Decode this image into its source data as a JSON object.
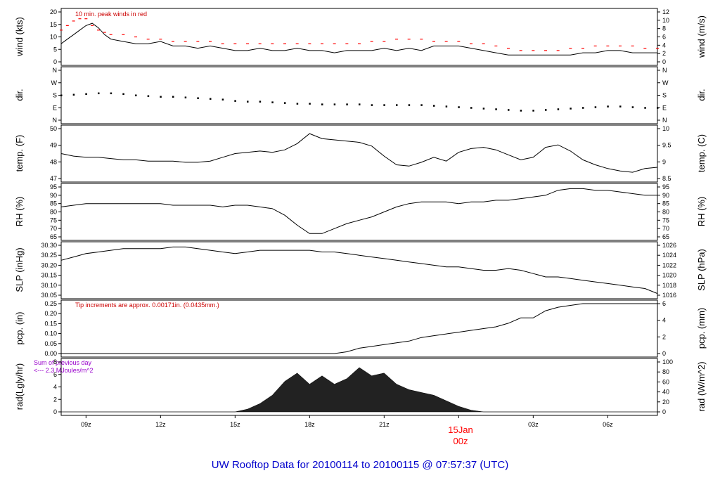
{
  "footer_title": "UW Rooftop Data for 20100114  to  20100115 @ 07:57:37  (UTC)",
  "date_marker": {
    "day": "15Jan",
    "hour": "00z"
  },
  "x_ticks": [
    "09z",
    "12z",
    "15z",
    "18z",
    "21z",
    "00z",
    "03z",
    "06z"
  ],
  "colors": {
    "line": "#000000",
    "peak": "#ff0000",
    "precip": "#ff0000",
    "radiation_note": "#9900cc",
    "footer": "#0000cc"
  },
  "chart_data": [
    {
      "type": "line",
      "name": "wind",
      "ylabel_left": "wind (kts)",
      "ylabel_right": "wind (m/s)",
      "annotation": "10 min. peak winds in red",
      "left_ticks": [
        "0",
        "5",
        "10",
        "15",
        "20"
      ],
      "right_ticks": [
        "0",
        "2",
        "4",
        "6",
        "8",
        "10",
        "12"
      ],
      "x_hours": [
        0,
        0.25,
        0.5,
        0.75,
        1,
        1.25,
        1.5,
        1.75,
        2,
        2.5,
        3,
        3.5,
        4,
        4.5,
        5,
        5.5,
        6,
        6.5,
        7,
        7.5,
        8,
        8.5,
        9,
        9.5,
        10,
        10.5,
        11,
        11.5,
        12,
        12.5,
        13,
        13.5,
        14,
        14.5,
        15,
        15.5,
        16,
        16.5,
        17,
        17.5,
        18,
        18.5,
        19,
        19.5,
        20,
        20.5,
        21,
        21.5,
        22,
        22.5,
        23,
        23.5,
        24
      ],
      "values": [
        8,
        10,
        12,
        14,
        16,
        17,
        15,
        12,
        10,
        9,
        8,
        8,
        9,
        7,
        7,
        6,
        7,
        6,
        5,
        5,
        6,
        5,
        5,
        6,
        5,
        5,
        4,
        5,
        5,
        5,
        6,
        5,
        6,
        5,
        7,
        7,
        7,
        6,
        5,
        4,
        3,
        3,
        3,
        3,
        3,
        3,
        4,
        4,
        5,
        5,
        4,
        4,
        4
      ],
      "peaks": [
        14,
        16,
        18,
        19,
        19,
        16,
        14,
        13,
        12,
        12,
        11,
        10,
        10,
        9,
        9,
        9,
        9,
        8,
        8,
        8,
        8,
        8,
        8,
        8,
        8,
        8,
        8,
        8,
        8,
        9,
        9,
        10,
        10,
        10,
        9,
        9,
        9,
        8,
        8,
        7,
        6,
        5,
        5,
        5,
        5,
        6,
        6,
        7,
        7,
        7,
        7,
        6,
        6
      ],
      "ylim": [
        0,
        22
      ]
    },
    {
      "type": "scatter",
      "name": "direction",
      "ylabel_left": "dir.",
      "ylabel_right": "dir.",
      "left_ticks": [
        "N",
        "E",
        "S",
        "W",
        "N"
      ],
      "right_ticks": [
        "N",
        "E",
        "S",
        "W",
        "N"
      ],
      "x_hours": [
        0,
        0.5,
        1,
        1.5,
        2,
        2.5,
        3,
        3.5,
        4,
        4.5,
        5,
        5.5,
        6,
        6.5,
        7,
        7.5,
        8,
        8.5,
        9,
        9.5,
        10,
        10.5,
        11,
        11.5,
        12,
        12.5,
        13,
        13.5,
        14,
        14.5,
        15,
        15.5,
        16,
        16.5,
        17,
        17.5,
        18,
        18.5,
        19,
        19.5,
        20,
        20.5,
        21,
        21.5,
        22,
        22.5,
        23,
        23.5,
        24
      ],
      "values": [
        180,
        185,
        190,
        195,
        195,
        190,
        180,
        175,
        170,
        170,
        165,
        160,
        155,
        150,
        140,
        135,
        135,
        130,
        125,
        120,
        120,
        115,
        115,
        115,
        115,
        110,
        110,
        110,
        110,
        110,
        105,
        100,
        95,
        90,
        85,
        80,
        75,
        70,
        70,
        75,
        80,
        85,
        90,
        95,
        100,
        100,
        95,
        90,
        90
      ],
      "ylim": [
        0,
        360
      ]
    },
    {
      "type": "line",
      "name": "temperature",
      "ylabel_left": "temp. (F)",
      "ylabel_right": "temp. (C)",
      "left_ticks": [
        "47",
        "48",
        "49",
        "50"
      ],
      "right_ticks": [
        "8.5",
        "9",
        "9.5",
        "10"
      ],
      "x_hours": [
        0,
        0.5,
        1,
        1.5,
        2,
        2.5,
        3,
        3.5,
        4,
        4.5,
        5,
        5.5,
        6,
        6.5,
        7,
        7.5,
        8,
        8.5,
        9,
        9.5,
        10,
        10.5,
        11,
        11.5,
        12,
        12.5,
        13,
        13.5,
        14,
        14.5,
        15,
        15.5,
        16,
        16.5,
        17,
        17.5,
        18,
        18.5,
        19,
        19.5,
        20,
        20.5,
        21,
        21.5,
        22,
        22.5,
        23,
        23.5,
        24
      ],
      "values": [
        48.5,
        48.3,
        48.2,
        48.2,
        48.1,
        48.0,
        48.0,
        47.9,
        47.9,
        47.9,
        47.8,
        47.8,
        47.9,
        48.2,
        48.5,
        48.6,
        48.7,
        48.6,
        48.8,
        49.3,
        50.1,
        49.7,
        49.6,
        49.5,
        49.4,
        49.1,
        48.3,
        47.6,
        47.5,
        47.8,
        48.2,
        47.9,
        48.6,
        48.9,
        49.0,
        48.8,
        48.4,
        48.0,
        48.2,
        49.0,
        49.2,
        48.7,
        48.0,
        47.6,
        47.3,
        47.1,
        47.0,
        47.3,
        47.4
      ],
      "ylim": [
        46.5,
        50.5
      ]
    },
    {
      "type": "line",
      "name": "relative_humidity",
      "ylabel_left": "RH (%)",
      "ylabel_right": "RH (%)",
      "left_ticks": [
        "65",
        "70",
        "75",
        "80",
        "85",
        "90",
        "95"
      ],
      "right_ticks": [
        "65",
        "70",
        "75",
        "80",
        "85",
        "90",
        "95"
      ],
      "x_hours": [
        0,
        0.5,
        1,
        1.5,
        2,
        2.5,
        3,
        3.5,
        4,
        4.5,
        5,
        5.5,
        6,
        6.5,
        7,
        7.5,
        8,
        8.5,
        9,
        9.5,
        10,
        10.5,
        11,
        11.5,
        12,
        12.5,
        13,
        13.5,
        14,
        14.5,
        15,
        15.5,
        16,
        16.5,
        17,
        17.5,
        18,
        18.5,
        19,
        19.5,
        20,
        20.5,
        21,
        21.5,
        22,
        22.5,
        23,
        23.5,
        24
      ],
      "values": [
        83,
        84,
        85,
        85,
        85,
        85,
        85,
        85,
        85,
        84,
        84,
        84,
        84,
        83,
        84,
        84,
        83,
        82,
        78,
        72,
        67,
        67,
        70,
        73,
        75,
        77,
        80,
        83,
        85,
        86,
        86,
        86,
        85,
        86,
        86,
        87,
        87,
        88,
        89,
        90,
        93,
        94,
        94,
        93,
        93,
        92,
        91,
        90,
        90
      ],
      "ylim": [
        65,
        95
      ]
    },
    {
      "type": "line",
      "name": "sea_level_pressure",
      "ylabel_left": "SLP (inHg)",
      "ylabel_right": "SLP (hPa)",
      "left_ticks": [
        "30.05",
        "30.10",
        "30.15",
        "30.20",
        "30.25",
        "30.30"
      ],
      "right_ticks": [
        "1016",
        "1018",
        "1020",
        "1022",
        "1024",
        "1026"
      ],
      "x_hours": [
        0,
        0.5,
        1,
        1.5,
        2,
        2.5,
        3,
        3.5,
        4,
        4.5,
        5,
        5.5,
        6,
        6.5,
        7,
        7.5,
        8,
        8.5,
        9,
        9.5,
        10,
        10.5,
        11,
        11.5,
        12,
        12.5,
        13,
        13.5,
        14,
        14.5,
        15,
        15.5,
        16,
        16.5,
        17,
        17.5,
        18,
        18.5,
        19,
        19.5,
        20,
        20.5,
        21,
        21.5,
        22,
        22.5,
        23,
        23.5,
        24
      ],
      "values": [
        30.22,
        30.24,
        30.26,
        30.27,
        30.28,
        30.29,
        30.29,
        30.29,
        30.29,
        30.3,
        30.3,
        30.29,
        30.28,
        30.27,
        30.26,
        30.27,
        30.28,
        30.28,
        30.28,
        30.28,
        30.28,
        30.27,
        30.27,
        30.26,
        30.25,
        30.24,
        30.23,
        30.22,
        30.21,
        30.2,
        30.19,
        30.18,
        30.18,
        30.17,
        30.16,
        30.16,
        30.17,
        30.16,
        30.14,
        30.12,
        30.12,
        30.11,
        30.1,
        30.09,
        30.08,
        30.07,
        30.06,
        30.05,
        30.02
      ],
      "ylim": [
        30.01,
        30.31
      ]
    },
    {
      "type": "area",
      "name": "precipitation",
      "ylabel_left": "pcp. (in)",
      "ylabel_right": "pcp. (mm)",
      "annotation": "Tip increments are approx. 0.00171in. (0.0435mm.)",
      "left_ticks": [
        "0.00",
        "0.05",
        "0.10",
        "0.15",
        "0.20",
        "0.25"
      ],
      "right_ticks": [
        "0",
        "2",
        "4",
        "6"
      ],
      "x_hours": [
        0,
        11,
        11.5,
        12,
        12.5,
        13,
        13.5,
        14,
        14.5,
        15,
        15.5,
        16,
        16.5,
        17,
        17.5,
        18,
        18.5,
        19,
        19.5,
        20,
        20.5,
        21,
        24
      ],
      "values": [
        0,
        0,
        0.01,
        0.03,
        0.04,
        0.05,
        0.06,
        0.07,
        0.09,
        0.1,
        0.11,
        0.12,
        0.13,
        0.14,
        0.15,
        0.17,
        0.2,
        0.2,
        0.24,
        0.26,
        0.27,
        0.28,
        0.28
      ],
      "ylim": [
        0,
        0.28
      ]
    },
    {
      "type": "area",
      "name": "radiation",
      "ylabel_left": "rad(Lgly/hr)",
      "ylabel_right": "rad (W/m^2)",
      "annotation_line1": "Sum of previous day",
      "annotation_line2": "<--- 2.3 MJoules/m^2",
      "left_ticks": [
        "0",
        "2",
        "4",
        "6",
        "8"
      ],
      "right_ticks": [
        "0",
        "20",
        "40",
        "60",
        "80",
        "100"
      ],
      "x_hours": [
        0,
        7,
        7.5,
        8,
        8.5,
        9,
        9.5,
        10,
        10.5,
        11,
        11.5,
        12,
        12.5,
        13,
        13.5,
        14,
        14.5,
        15,
        15.5,
        16,
        16.5,
        17,
        24
      ],
      "values": [
        0,
        0,
        0.5,
        1.5,
        3,
        5.5,
        7,
        5,
        6.5,
        5,
        6,
        8,
        6.5,
        7,
        5,
        4,
        3.5,
        3,
        2,
        1,
        0.3,
        0,
        0
      ],
      "ylim": [
        0,
        9
      ]
    }
  ]
}
